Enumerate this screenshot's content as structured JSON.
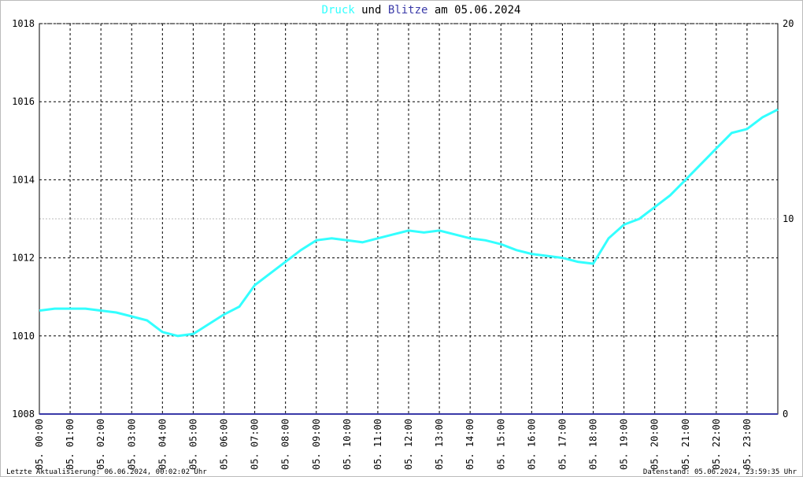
{
  "chart_data": {
    "type": "line",
    "title_mid": "und",
    "title_end": "am 05.06.2024",
    "x": [
      0,
      0.5,
      1,
      1.5,
      2,
      2.5,
      3,
      3.5,
      4,
      4.5,
      5,
      5.5,
      6,
      6.5,
      7,
      7.5,
      8,
      8.5,
      9,
      9.5,
      10,
      10.5,
      11,
      11.5,
      12,
      12.5,
      13,
      13.5,
      14,
      14.5,
      15,
      15.5,
      16,
      16.5,
      17,
      17.5,
      18,
      18.5,
      19,
      19.5,
      20,
      20.5,
      21,
      21.5,
      22,
      22.5,
      23,
      23.5,
      24
    ],
    "series": [
      {
        "name": "Druck",
        "color": "#33ffff",
        "axis": "y",
        "values": [
          1010.65,
          1010.7,
          1010.7,
          1010.7,
          1010.65,
          1010.6,
          1010.5,
          1010.4,
          1010.1,
          1010.0,
          1010.05,
          1010.3,
          1010.55,
          1010.75,
          1011.3,
          1011.6,
          1011.9,
          1012.2,
          1012.45,
          1012.5,
          1012.45,
          1012.4,
          1012.5,
          1012.6,
          1012.7,
          1012.65,
          1012.7,
          1012.6,
          1012.5,
          1012.45,
          1012.35,
          1012.2,
          1012.1,
          1012.05,
          1012.0,
          1011.9,
          1011.85,
          1012.5,
          1012.85,
          1013.0,
          1013.3,
          1013.6,
          1014.0,
          1014.4,
          1014.8,
          1015.2,
          1015.3,
          1015.6,
          1015.8
        ]
      },
      {
        "name": "Blitze",
        "color": "#3a3aa8",
        "axis": "y2",
        "values": [
          0,
          0,
          0,
          0,
          0,
          0,
          0,
          0,
          0,
          0,
          0,
          0,
          0,
          0,
          0,
          0,
          0,
          0,
          0,
          0,
          0,
          0,
          0,
          0,
          0,
          0,
          0,
          0,
          0,
          0,
          0,
          0,
          0,
          0,
          0,
          0,
          0,
          0,
          0,
          0,
          0,
          0,
          0,
          0,
          0,
          0,
          0,
          0,
          0
        ]
      }
    ],
    "xlim": [
      0,
      24
    ],
    "xticks": [
      {
        "value": 0,
        "label": "05. 00:00"
      },
      {
        "value": 1,
        "label": "05. 01:00"
      },
      {
        "value": 2,
        "label": "05. 02:00"
      },
      {
        "value": 3,
        "label": "05. 03:00"
      },
      {
        "value": 4,
        "label": "05. 04:00"
      },
      {
        "value": 5,
        "label": "05. 05:00"
      },
      {
        "value": 6,
        "label": "05. 06:00"
      },
      {
        "value": 7,
        "label": "05. 07:00"
      },
      {
        "value": 8,
        "label": "05. 08:00"
      },
      {
        "value": 9,
        "label": "05. 09:00"
      },
      {
        "value": 10,
        "label": "05. 10:00"
      },
      {
        "value": 11,
        "label": "05. 11:00"
      },
      {
        "value": 12,
        "label": "05. 12:00"
      },
      {
        "value": 13,
        "label": "05. 13:00"
      },
      {
        "value": 14,
        "label": "05. 14:00"
      },
      {
        "value": 15,
        "label": "05. 15:00"
      },
      {
        "value": 16,
        "label": "05. 16:00"
      },
      {
        "value": 17,
        "label": "05. 17:00"
      },
      {
        "value": 18,
        "label": "05. 18:00"
      },
      {
        "value": 19,
        "label": "05. 19:00"
      },
      {
        "value": 20,
        "label": "05. 20:00"
      },
      {
        "value": 21,
        "label": "05. 21:00"
      },
      {
        "value": 22,
        "label": "05. 22:00"
      },
      {
        "value": 23,
        "label": "05. 23:00"
      }
    ],
    "ylim": [
      1008,
      1018
    ],
    "yticks": [
      1008,
      1010,
      1012,
      1014,
      1016,
      1018
    ],
    "y2lim": [
      0,
      20
    ],
    "y2ticks": [
      0,
      10,
      20
    ],
    "grid": true
  },
  "footer_left": "Letzte Aktualisierung: 06.06.2024, 00:02:02 Uhr",
  "footer_right": "Datenstand: 05.06.2024, 23:59:35 Uhr"
}
